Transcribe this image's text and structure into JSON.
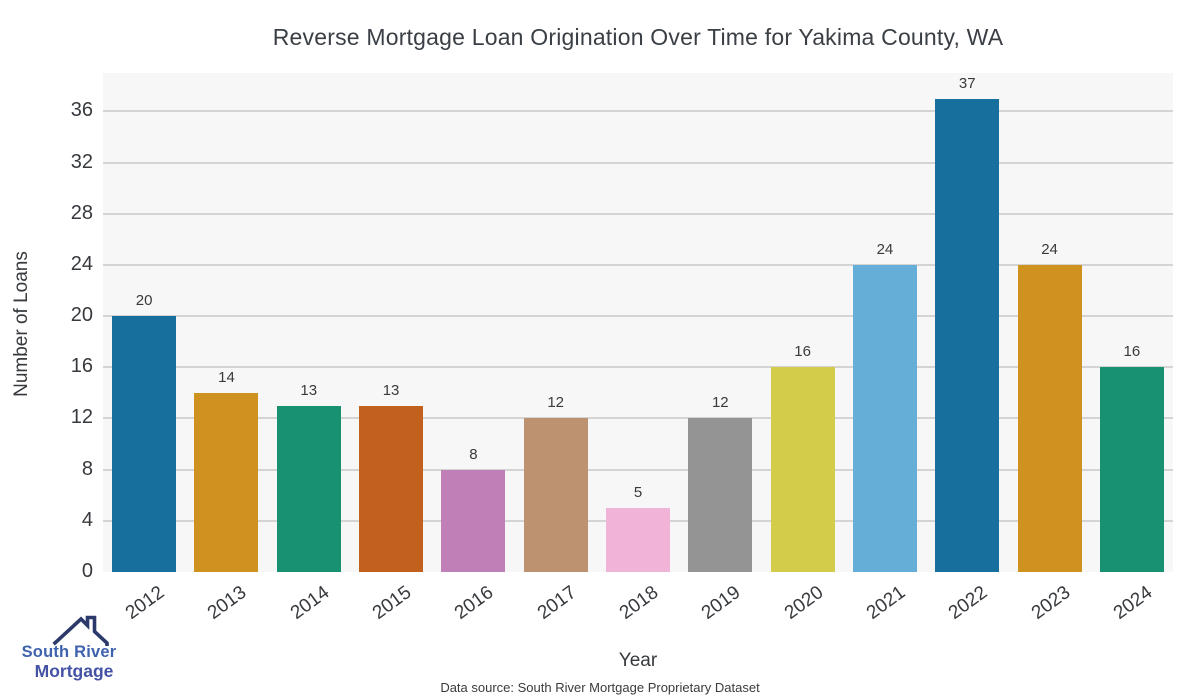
{
  "footer": "Data source: South River Mortgage Proprietary Dataset",
  "logo": {
    "line1": "South River",
    "line2": "Mortgage",
    "house_icon_color": "#2b3a6b"
  },
  "chart_data": {
    "type": "bar",
    "title": "Reverse Mortgage Loan Origination Over Time for Yakima County, WA",
    "xlabel": "Year",
    "ylabel": "Number of Loans",
    "categories": [
      "2012",
      "2013",
      "2014",
      "2015",
      "2016",
      "2017",
      "2018",
      "2019",
      "2020",
      "2021",
      "2022",
      "2023",
      "2024"
    ],
    "values": [
      20,
      14,
      13,
      13,
      8,
      12,
      5,
      12,
      16,
      24,
      37,
      24,
      16
    ],
    "yticks": [
      0,
      4,
      8,
      12,
      16,
      20,
      24,
      28,
      32,
      36
    ],
    "ylim": [
      0,
      39
    ],
    "grid": "horizontal-only",
    "legend": "none",
    "plot_background": "#f7f7f8",
    "grid_color": "#d4d4d4",
    "palette": [
      "#176f9e",
      "#d0921f",
      "#179170",
      "#c2611e",
      "#c07fb6",
      "#bc9270",
      "#f2b3d9",
      "#949494",
      "#d3cc4a",
      "#64aed8"
    ]
  }
}
